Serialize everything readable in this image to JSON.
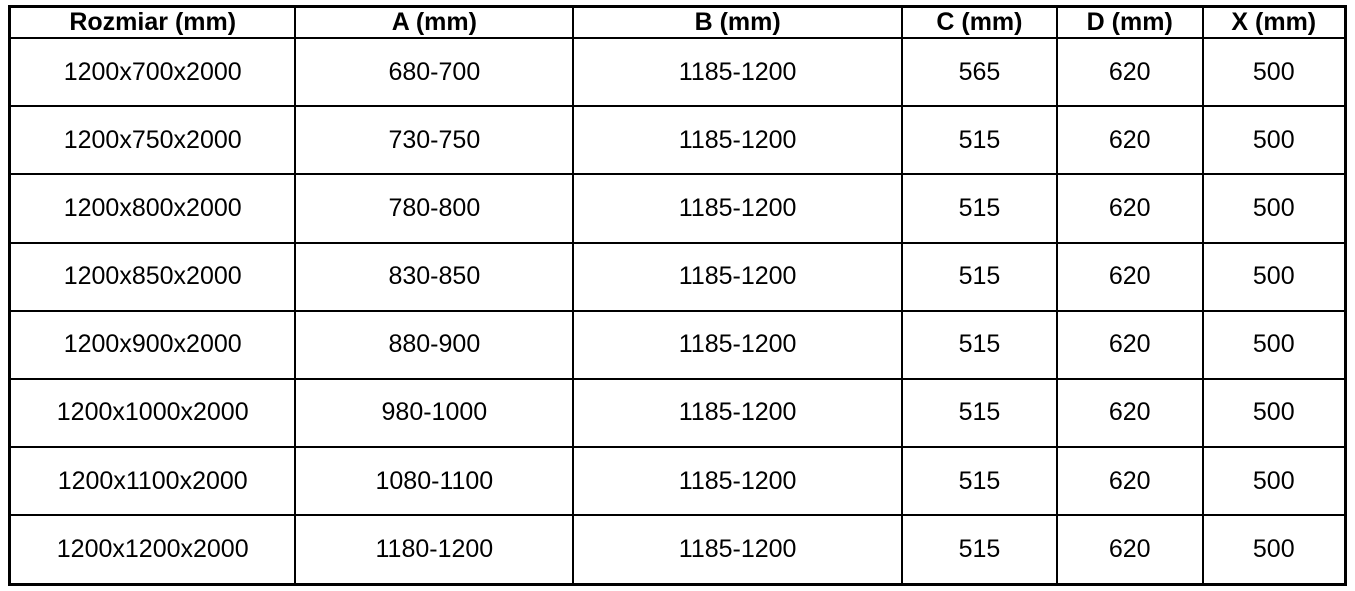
{
  "table": {
    "headers": [
      "Rozmiar (mm)",
      "A (mm)",
      "B (mm)",
      "C (mm)",
      "D (mm)",
      "X (mm)"
    ],
    "rows": [
      [
        "1200x700x2000",
        "680-700",
        "1185-1200",
        "565",
        "620",
        "500"
      ],
      [
        "1200x750x2000",
        "730-750",
        "1185-1200",
        "515",
        "620",
        "500"
      ],
      [
        "1200x800x2000",
        "780-800",
        "1185-1200",
        "515",
        "620",
        "500"
      ],
      [
        "1200x850x2000",
        "830-850",
        "1185-1200",
        "515",
        "620",
        "500"
      ],
      [
        "1200x900x2000",
        "880-900",
        "1185-1200",
        "515",
        "620",
        "500"
      ],
      [
        "1200x1000x2000",
        "980-1000",
        "1185-1200",
        "515",
        "620",
        "500"
      ],
      [
        "1200x1100x2000",
        "1080-1100",
        "1185-1200",
        "515",
        "620",
        "500"
      ],
      [
        "1200x1200x2000",
        "1180-1200",
        "1185-1200",
        "515",
        "620",
        "500"
      ]
    ]
  },
  "chart_data": {
    "type": "table",
    "title": "",
    "columns": [
      "Rozmiar (mm)",
      "A (mm)",
      "B (mm)",
      "C (mm)",
      "D (mm)",
      "X (mm)"
    ],
    "rows": [
      [
        "1200x700x2000",
        "680-700",
        "1185-1200",
        565,
        620,
        500
      ],
      [
        "1200x750x2000",
        "730-750",
        "1185-1200",
        515,
        620,
        500
      ],
      [
        "1200x800x2000",
        "780-800",
        "1185-1200",
        515,
        620,
        500
      ],
      [
        "1200x850x2000",
        "830-850",
        "1185-1200",
        515,
        620,
        500
      ],
      [
        "1200x900x2000",
        "880-900",
        "1185-1200",
        515,
        620,
        500
      ],
      [
        "1200x1000x2000",
        "980-1000",
        "1185-1200",
        515,
        620,
        500
      ],
      [
        "1200x1100x2000",
        "1080-1100",
        "1185-1200",
        515,
        620,
        500
      ],
      [
        "1200x1200x2000",
        "1180-1200",
        "1185-1200",
        515,
        620,
        500
      ]
    ]
  },
  "colors": {
    "border": "#000000",
    "text": "#000000",
    "background": "#ffffff"
  }
}
